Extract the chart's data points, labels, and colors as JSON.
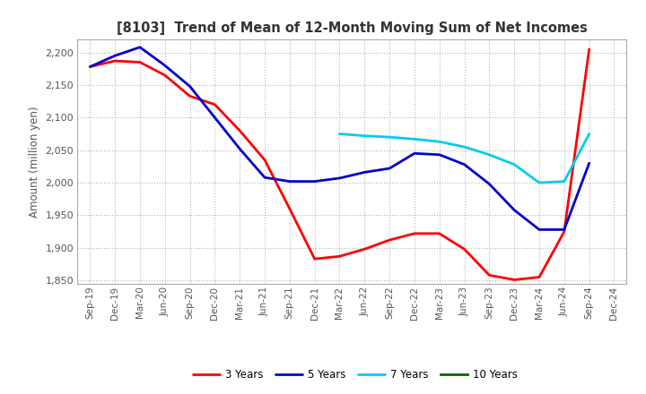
{
  "title": "[8103]  Trend of Mean of 12-Month Moving Sum of Net Incomes",
  "ylabel": "Amount (million yen)",
  "background_color": "#ffffff",
  "grid_color": "#aaaaaa",
  "ylim": [
    1845,
    2220
  ],
  "yticks": [
    1850,
    1900,
    1950,
    2000,
    2050,
    2100,
    2150,
    2200
  ],
  "x_labels": [
    "Sep-19",
    "Dec-19",
    "Mar-20",
    "Jun-20",
    "Sep-20",
    "Dec-20",
    "Mar-21",
    "Jun-21",
    "Sep-21",
    "Dec-21",
    "Mar-22",
    "Jun-22",
    "Sep-22",
    "Dec-22",
    "Mar-23",
    "Jun-23",
    "Sep-23",
    "Dec-23",
    "Mar-24",
    "Jun-24",
    "Sep-24",
    "Dec-24"
  ],
  "series": {
    "3 Years": {
      "color": "#ff0000",
      "data_x": [
        0,
        1,
        2,
        3,
        4,
        5,
        6,
        7,
        8,
        9,
        10,
        11,
        12,
        13,
        14,
        15,
        16,
        17,
        18,
        19,
        20
      ],
      "data_y": [
        2178,
        2187,
        2185,
        2165,
        2133,
        2120,
        2080,
        2035,
        1960,
        1883,
        1887,
        1898,
        1912,
        1922,
        1922,
        1898,
        1858,
        1851,
        1855,
        1925,
        2205
      ]
    },
    "5 Years": {
      "color": "#0000cc",
      "data_x": [
        0,
        1,
        2,
        3,
        4,
        5,
        6,
        7,
        8,
        9,
        10,
        11,
        12,
        13,
        14,
        15,
        16,
        17,
        18,
        19,
        20
      ],
      "data_y": [
        2178,
        2195,
        2208,
        2180,
        2148,
        2100,
        2052,
        2008,
        2002,
        2002,
        2007,
        2016,
        2022,
        2045,
        2043,
        2028,
        1998,
        1958,
        1928,
        1928,
        2030
      ]
    },
    "7 Years": {
      "color": "#00ccee",
      "data_x": [
        10,
        11,
        12,
        13,
        14,
        15,
        16,
        17,
        18,
        19,
        20
      ],
      "data_y": [
        2075,
        2072,
        2070,
        2067,
        2063,
        2055,
        2043,
        2028,
        2000,
        2002,
        2075
      ]
    },
    "10 Years": {
      "color": "#006600",
      "data_x": [],
      "data_y": []
    }
  },
  "legend_entries": [
    "3 Years",
    "5 Years",
    "7 Years",
    "10 Years"
  ]
}
